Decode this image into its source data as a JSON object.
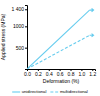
{
  "chart_data": {
    "type": "line",
    "xlabel": "Deformation (%)",
    "ylabel": "Applied stress (MPa)",
    "x": [
      0.0,
      1.15
    ],
    "series": [
      {
        "name": "unidirectional",
        "color": "#66ccee",
        "line_style": "solid",
        "values": [
          0,
          1380
        ]
      },
      {
        "name": "multidirectional",
        "color": "#66ccee",
        "line_style": "dashed",
        "values": [
          0,
          790
        ]
      }
    ],
    "xlim": [
      0.0,
      1.25
    ],
    "ylim": [
      0,
      1500
    ],
    "xticks": [
      {
        "value": 0,
        "label": "0.0"
      },
      0.2,
      0.4,
      0.6,
      0.8,
      {
        "value": 1,
        "label": "1.0"
      },
      1.2
    ],
    "yticks": [
      500,
      1000,
      {
        "value": 1400,
        "label": "1 400"
      }
    ],
    "grid": false,
    "legend": "bottom"
  }
}
